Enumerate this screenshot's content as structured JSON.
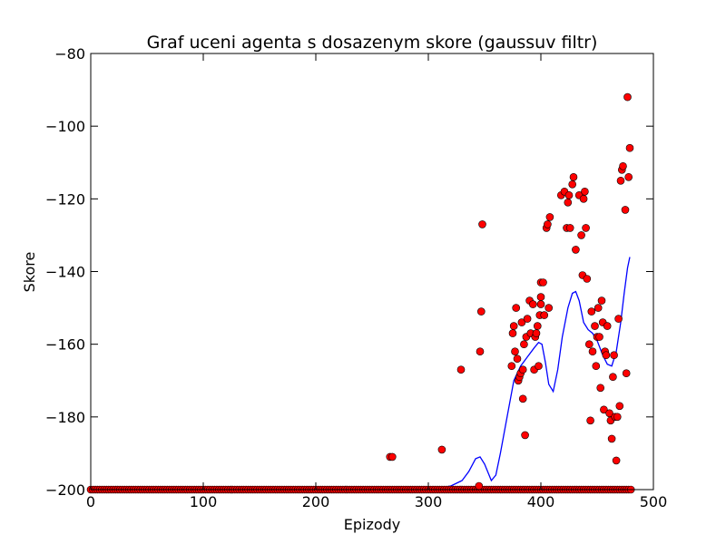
{
  "chart_data": {
    "type": "scatter",
    "title": "Graf uceni agenta s dosazenym skore (gaussuv filtr)",
    "xlabel": "Epizody",
    "ylabel": "Skore",
    "xlim": [
      0,
      500
    ],
    "ylim": [
      -200,
      -80
    ],
    "x_ticks": [
      0,
      100,
      200,
      300,
      400,
      500
    ],
    "y_ticks": [
      -80,
      -100,
      -120,
      -140,
      -160,
      -180,
      -200
    ],
    "x_tick_labels": [
      "0",
      "100",
      "200",
      "300",
      "400",
      "500"
    ],
    "y_tick_labels": [
      "−80",
      "−100",
      "−120",
      "−140",
      "−160",
      "−180",
      "−200"
    ],
    "grid": false,
    "legend": "none",
    "marker_color": "#ff0000",
    "line_color": "#0000ff",
    "baseline": {
      "x_start": 0,
      "x_end": 480,
      "x_step": 2,
      "y": -200
    },
    "series": [
      {
        "kind": "points",
        "values": [
          [
            266,
            -191
          ],
          [
            268,
            -191
          ],
          [
            312,
            -189
          ],
          [
            329,
            -167
          ],
          [
            345,
            -199
          ],
          [
            346,
            -162
          ],
          [
            347,
            -151
          ],
          [
            348,
            -127
          ],
          [
            374,
            -166
          ],
          [
            375,
            -157
          ],
          [
            376,
            -155
          ],
          [
            377,
            -162
          ],
          [
            378,
            -150
          ],
          [
            379,
            -164
          ],
          [
            380,
            -170
          ],
          [
            381,
            -169
          ],
          [
            382,
            -168
          ],
          [
            383,
            -154
          ],
          [
            384,
            -167
          ],
          [
            384,
            -175
          ],
          [
            385,
            -160
          ],
          [
            386,
            -185
          ],
          [
            387,
            -158
          ],
          [
            388,
            -153
          ],
          [
            390,
            -148
          ],
          [
            391,
            -157
          ],
          [
            393,
            -149
          ],
          [
            394,
            -167
          ],
          [
            395,
            -158
          ],
          [
            396,
            -157
          ],
          [
            397,
            -155
          ],
          [
            398,
            -166
          ],
          [
            399,
            -152
          ],
          [
            400,
            -147
          ],
          [
            400,
            -149
          ],
          [
            400,
            -143
          ],
          [
            402,
            -143
          ],
          [
            403,
            -152
          ],
          [
            405,
            -128
          ],
          [
            406,
            -127
          ],
          [
            407,
            -150
          ],
          [
            408,
            -125
          ],
          [
            418,
            -119
          ],
          [
            421,
            -118
          ],
          [
            423,
            -128
          ],
          [
            424,
            -121
          ],
          [
            425,
            -119
          ],
          [
            426,
            -128
          ],
          [
            428,
            -116
          ],
          [
            429,
            -114
          ],
          [
            431,
            -134
          ],
          [
            434,
            -119
          ],
          [
            436,
            -130
          ],
          [
            437,
            -141
          ],
          [
            438,
            -120
          ],
          [
            439,
            -118
          ],
          [
            440,
            -128
          ],
          [
            441,
            -142
          ],
          [
            443,
            -160
          ],
          [
            444,
            -181
          ],
          [
            445,
            -151
          ],
          [
            446,
            -162
          ],
          [
            448,
            -155
          ],
          [
            449,
            -166
          ],
          [
            450,
            -158
          ],
          [
            451,
            -150
          ],
          [
            452,
            -158
          ],
          [
            453,
            -172
          ],
          [
            454,
            -148
          ],
          [
            455,
            -154
          ],
          [
            456,
            -178
          ],
          [
            457,
            -162
          ],
          [
            458,
            -163
          ],
          [
            459,
            -155
          ],
          [
            461,
            -179
          ],
          [
            462,
            -181
          ],
          [
            463,
            -186
          ],
          [
            464,
            -169
          ],
          [
            465,
            -163
          ],
          [
            466,
            -180
          ],
          [
            467,
            -192
          ],
          [
            468,
            -180
          ],
          [
            469,
            -153
          ],
          [
            470,
            -177
          ],
          [
            471,
            -115
          ],
          [
            472,
            -112
          ],
          [
            473,
            -111
          ],
          [
            475,
            -123
          ],
          [
            476,
            -168
          ],
          [
            477,
            -92
          ],
          [
            478,
            -114
          ],
          [
            479,
            -106
          ]
        ]
      },
      {
        "kind": "smoothed-line",
        "values": [
          [
            0,
            -200
          ],
          [
            250,
            -200
          ],
          [
            262,
            -200
          ],
          [
            268,
            -199.5
          ],
          [
            274,
            -200
          ],
          [
            300,
            -200
          ],
          [
            320,
            -199
          ],
          [
            330,
            -197.5
          ],
          [
            336,
            -195
          ],
          [
            342,
            -191.5
          ],
          [
            346,
            -191
          ],
          [
            350,
            -193
          ],
          [
            356,
            -197.5
          ],
          [
            360,
            -196
          ],
          [
            364,
            -190
          ],
          [
            370,
            -180
          ],
          [
            376,
            -170
          ],
          [
            382,
            -166
          ],
          [
            388,
            -163.5
          ],
          [
            394,
            -161
          ],
          [
            398,
            -159.5
          ],
          [
            401,
            -160
          ],
          [
            404,
            -165
          ],
          [
            407,
            -171
          ],
          [
            411,
            -173
          ],
          [
            415,
            -167
          ],
          [
            419,
            -158
          ],
          [
            424,
            -150
          ],
          [
            428,
            -146
          ],
          [
            431,
            -145.5
          ],
          [
            434,
            -148
          ],
          [
            438,
            -154
          ],
          [
            442,
            -156
          ],
          [
            446,
            -157
          ],
          [
            450,
            -159
          ],
          [
            455,
            -163
          ],
          [
            459,
            -165.5
          ],
          [
            463,
            -166
          ],
          [
            467,
            -162
          ],
          [
            471,
            -154
          ],
          [
            474,
            -146
          ],
          [
            477,
            -139
          ],
          [
            479,
            -136
          ]
        ]
      }
    ]
  }
}
